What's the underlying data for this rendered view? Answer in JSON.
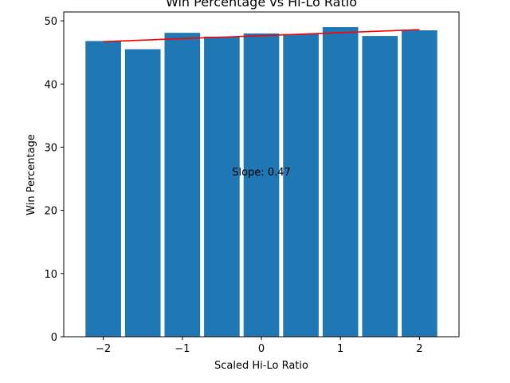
{
  "chart_data": {
    "type": "bar",
    "title": "Win Percentage vs Hi-Lo Ratio",
    "xlabel": "Scaled Hi-Lo Ratio",
    "ylabel": "Win Percentage",
    "x": [
      -2.0,
      -1.5,
      -1.0,
      -0.5,
      0.0,
      0.5,
      1.0,
      1.5,
      2.0
    ],
    "values": [
      46.8,
      45.5,
      48.1,
      47.5,
      48.0,
      47.9,
      49.0,
      47.6,
      48.5
    ],
    "bar_color": "#1f77b4",
    "trendline": {
      "x": [
        -2.0,
        2.0
      ],
      "y": [
        46.7,
        48.6
      ],
      "color": "#ff0000"
    },
    "annotation": {
      "text": "Slope: 0.47",
      "x": 0.0,
      "y": 25.5
    },
    "xlim": [
      -2.5,
      2.5
    ],
    "ylim": [
      0,
      51.4
    ],
    "xticks": [
      -2,
      -1,
      0,
      1,
      2
    ],
    "xtick_labels": [
      "−2",
      "−1",
      "0",
      "1",
      "2"
    ],
    "yticks": [
      0,
      10,
      20,
      30,
      40,
      50
    ],
    "ytick_labels": [
      "0",
      "10",
      "20",
      "30",
      "40",
      "50"
    ],
    "grid": false,
    "legend": "none"
  }
}
